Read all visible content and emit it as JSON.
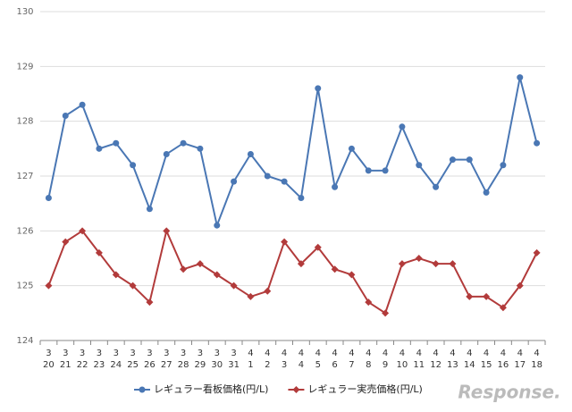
{
  "chart_data": {
    "type": "line",
    "categories": [
      [
        "3",
        "20"
      ],
      [
        "3",
        "21"
      ],
      [
        "3",
        "22"
      ],
      [
        "3",
        "23"
      ],
      [
        "3",
        "24"
      ],
      [
        "3",
        "25"
      ],
      [
        "3",
        "26"
      ],
      [
        "3",
        "27"
      ],
      [
        "3",
        "28"
      ],
      [
        "3",
        "29"
      ],
      [
        "3",
        "30"
      ],
      [
        "3",
        "31"
      ],
      [
        "4",
        "1"
      ],
      [
        "4",
        "2"
      ],
      [
        "4",
        "3"
      ],
      [
        "4",
        "4"
      ],
      [
        "4",
        "5"
      ],
      [
        "4",
        "6"
      ],
      [
        "4",
        "7"
      ],
      [
        "4",
        "8"
      ],
      [
        "4",
        "9"
      ],
      [
        "4",
        "10"
      ],
      [
        "4",
        "11"
      ],
      [
        "4",
        "12"
      ],
      [
        "4",
        "13"
      ],
      [
        "4",
        "14"
      ],
      [
        "4",
        "15"
      ],
      [
        "4",
        "16"
      ],
      [
        "4",
        "17"
      ],
      [
        "4",
        "18"
      ]
    ],
    "series": [
      {
        "name": "レギュラー看板価格(円/L)",
        "color": "#4a77b4",
        "marker": "circle",
        "values": [
          126.6,
          128.1,
          128.3,
          127.5,
          127.6,
          127.2,
          126.4,
          127.4,
          127.6,
          127.5,
          126.1,
          126.9,
          127.4,
          127.0,
          126.9,
          126.6,
          128.6,
          126.8,
          127.5,
          127.1,
          127.1,
          127.9,
          127.2,
          126.8,
          127.3,
          127.3,
          126.7,
          127.2,
          128.8,
          127.6
        ]
      },
      {
        "name": "レギュラー実売価格(円/L)",
        "color": "#b23b3b",
        "marker": "diamond",
        "values": [
          125.0,
          125.8,
          126.0,
          125.6,
          125.2,
          125.0,
          124.7,
          126.0,
          125.3,
          125.4,
          125.2,
          125.0,
          124.8,
          124.9,
          125.8,
          125.4,
          125.7,
          125.3,
          125.2,
          124.7,
          124.5,
          125.4,
          125.5,
          125.4,
          125.4,
          124.8,
          124.8,
          124.6,
          125.0,
          125.6
        ]
      }
    ],
    "ylim": [
      124,
      130
    ],
    "yticks": [
      124,
      125,
      126,
      127,
      128,
      129,
      130
    ],
    "grid": true,
    "legend": "bottom",
    "watermark": "Response."
  }
}
